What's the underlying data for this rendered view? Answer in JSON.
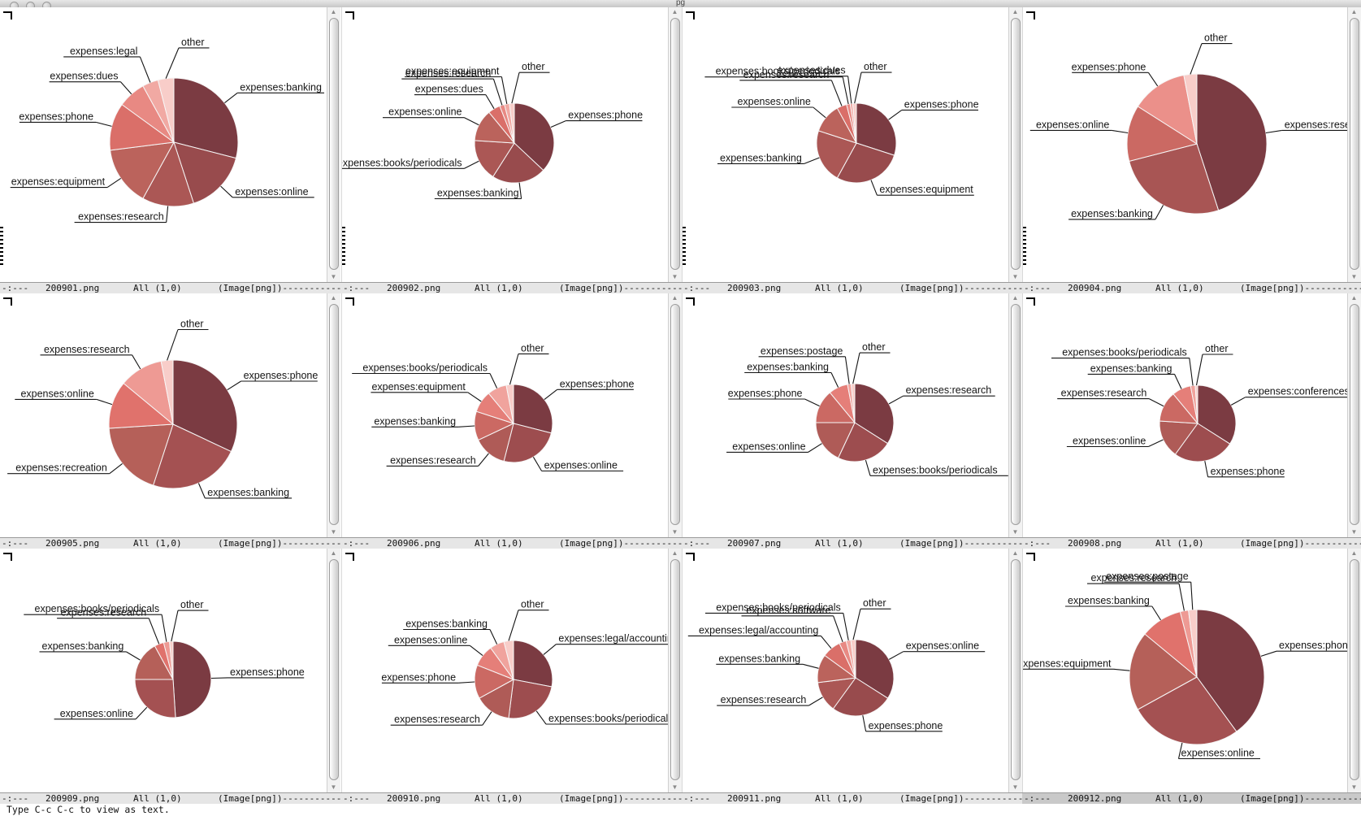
{
  "window": {
    "titlebar": {
      "title": "pg",
      "buttons": [
        "close-button",
        "minimize-button",
        "zoom-button"
      ]
    },
    "minibuffer_text": "Type C-c C-c to view as text."
  },
  "modeline": {
    "prefix": "-:---",
    "position": "All (1,0)",
    "mode": "(Image[png])",
    "dash_fill": "--------------------------------------------------------------------------------"
  },
  "active_pane": "200912.png",
  "chart_style": {
    "palette": [
      "#7b3b42",
      "#a45152",
      "#b56059",
      "#e0726c",
      "#ee9a94",
      "#f8cdc9"
    ],
    "slice_stroke": "#f7f7f7",
    "label_color": "#141414"
  },
  "panes": [
    {
      "file": "200901.png",
      "chart_data": {
        "type": "pie",
        "slices": [
          {
            "label": "expenses:banking",
            "pct": 29,
            "side": "right"
          },
          {
            "label": "expenses:online",
            "pct": 16,
            "side": "right"
          },
          {
            "label": "expenses:research",
            "pct": 13,
            "side": "left"
          },
          {
            "label": "expenses:equipment",
            "pct": 15,
            "side": "left"
          },
          {
            "label": "expenses:phone",
            "pct": 12,
            "side": "left"
          },
          {
            "label": "expenses:dues",
            "pct": 7,
            "side": "left"
          },
          {
            "label": "expenses:legal",
            "pct": 4,
            "side": "left"
          },
          {
            "label": "other",
            "pct": 4,
            "side": "right"
          }
        ]
      }
    },
    {
      "file": "200902.png",
      "chart_data": {
        "type": "pie",
        "slices": [
          {
            "label": "expenses:phone",
            "pct": 37,
            "side": "right"
          },
          {
            "label": "expenses:banking",
            "pct": 22,
            "side": "left"
          },
          {
            "label": "expenses:books/periodicals",
            "pct": 17,
            "side": "left"
          },
          {
            "label": "expenses:online",
            "pct": 13,
            "side": "left"
          },
          {
            "label": "expenses:dues",
            "pct": 5,
            "side": "left"
          },
          {
            "label": "expenses:research",
            "pct": 2,
            "side": "left"
          },
          {
            "label": "expenses:equipment",
            "pct": 2,
            "side": "left"
          },
          {
            "label": "other",
            "pct": 2,
            "side": "right"
          }
        ]
      }
    },
    {
      "file": "200903.png",
      "chart_data": {
        "type": "pie",
        "slices": [
          {
            "label": "expenses:phone",
            "pct": 30,
            "side": "right"
          },
          {
            "label": "expenses:equipment",
            "pct": 28,
            "side": "right"
          },
          {
            "label": "expenses:banking",
            "pct": 22,
            "side": "left"
          },
          {
            "label": "expenses:online",
            "pct": 12,
            "side": "left"
          },
          {
            "label": "expenses:research",
            "pct": 4,
            "side": "left"
          },
          {
            "label": "expenses:books/periodicals",
            "pct": 1.5,
            "side": "left"
          },
          {
            "label": "expenses:dues",
            "pct": 1,
            "side": "left"
          },
          {
            "label": "other",
            "pct": 1.5,
            "side": "right"
          }
        ]
      }
    },
    {
      "file": "200904.png",
      "chart_data": {
        "type": "pie",
        "slices": [
          {
            "label": "expenses:research",
            "pct": 45,
            "side": "right"
          },
          {
            "label": "expenses:banking",
            "pct": 26,
            "side": "left"
          },
          {
            "label": "expenses:online",
            "pct": 13,
            "side": "left"
          },
          {
            "label": "expenses:phone",
            "pct": 13,
            "side": "left"
          },
          {
            "label": "other",
            "pct": 3,
            "side": "right"
          }
        ]
      }
    },
    {
      "file": "200905.png",
      "chart_data": {
        "type": "pie",
        "slices": [
          {
            "label": "expenses:phone",
            "pct": 32,
            "side": "right"
          },
          {
            "label": "expenses:banking",
            "pct": 23,
            "side": "right"
          },
          {
            "label": "expenses:recreation",
            "pct": 19,
            "side": "left"
          },
          {
            "label": "expenses:online",
            "pct": 12,
            "side": "left"
          },
          {
            "label": "expenses:research",
            "pct": 11,
            "side": "left"
          },
          {
            "label": "other",
            "pct": 3,
            "side": "right"
          }
        ]
      }
    },
    {
      "file": "200906.png",
      "chart_data": {
        "type": "pie",
        "slices": [
          {
            "label": "expenses:phone",
            "pct": 29,
            "side": "right"
          },
          {
            "label": "expenses:online",
            "pct": 25,
            "side": "right"
          },
          {
            "label": "expenses:research",
            "pct": 14,
            "side": "left"
          },
          {
            "label": "expenses:banking",
            "pct": 12,
            "side": "left"
          },
          {
            "label": "expenses:equipment",
            "pct": 9,
            "side": "left"
          },
          {
            "label": "expenses:books/periodicals",
            "pct": 8,
            "side": "left"
          },
          {
            "label": "other",
            "pct": 3,
            "side": "right"
          }
        ]
      }
    },
    {
      "file": "200907.png",
      "chart_data": {
        "type": "pie",
        "slices": [
          {
            "label": "expenses:research",
            "pct": 34,
            "side": "right"
          },
          {
            "label": "expenses:books/periodicals",
            "pct": 23,
            "side": "right"
          },
          {
            "label": "expenses:online",
            "pct": 18,
            "side": "left"
          },
          {
            "label": "expenses:phone",
            "pct": 14,
            "side": "left"
          },
          {
            "label": "expenses:banking",
            "pct": 8,
            "side": "left"
          },
          {
            "label": "expenses:postage",
            "pct": 1.5,
            "side": "left"
          },
          {
            "label": "other",
            "pct": 1.5,
            "side": "right"
          }
        ]
      }
    },
    {
      "file": "200908.png",
      "chart_data": {
        "type": "pie",
        "slices": [
          {
            "label": "expenses:conferences",
            "pct": 34,
            "side": "right"
          },
          {
            "label": "expenses:phone",
            "pct": 26,
            "side": "right"
          },
          {
            "label": "expenses:online",
            "pct": 16,
            "side": "left"
          },
          {
            "label": "expenses:research",
            "pct": 13,
            "side": "left"
          },
          {
            "label": "expenses:banking",
            "pct": 8,
            "side": "left"
          },
          {
            "label": "expenses:books/periodicals",
            "pct": 2,
            "side": "left"
          },
          {
            "label": "other",
            "pct": 1,
            "side": "right"
          }
        ]
      }
    },
    {
      "file": "200909.png",
      "chart_data": {
        "type": "pie",
        "slices": [
          {
            "label": "expenses:phone",
            "pct": 49,
            "side": "right"
          },
          {
            "label": "expenses:online",
            "pct": 26,
            "side": "left"
          },
          {
            "label": "expenses:banking",
            "pct": 17,
            "side": "left"
          },
          {
            "label": "expenses:research",
            "pct": 4,
            "side": "left"
          },
          {
            "label": "expenses:books/periodicals",
            "pct": 2.5,
            "side": "left"
          },
          {
            "label": "other",
            "pct": 1.5,
            "side": "right"
          }
        ]
      }
    },
    {
      "file": "200910.png",
      "chart_data": {
        "type": "pie",
        "slices": [
          {
            "label": "expenses:legal/accounting",
            "pct": 28,
            "side": "right"
          },
          {
            "label": "expenses:books/periodicals",
            "pct": 24,
            "side": "right"
          },
          {
            "label": "expenses:research",
            "pct": 15,
            "side": "left"
          },
          {
            "label": "expenses:phone",
            "pct": 14,
            "side": "left"
          },
          {
            "label": "expenses:online",
            "pct": 9,
            "side": "left"
          },
          {
            "label": "expenses:banking",
            "pct": 6,
            "side": "left"
          },
          {
            "label": "other",
            "pct": 4,
            "side": "right"
          }
        ]
      }
    },
    {
      "file": "200911.png",
      "chart_data": {
        "type": "pie",
        "slices": [
          {
            "label": "expenses:online",
            "pct": 34,
            "side": "right"
          },
          {
            "label": "expenses:phone",
            "pct": 26,
            "side": "right"
          },
          {
            "label": "expenses:research",
            "pct": 13,
            "side": "left"
          },
          {
            "label": "expenses:banking",
            "pct": 12,
            "side": "left"
          },
          {
            "label": "expenses:legal/accounting",
            "pct": 8,
            "side": "left"
          },
          {
            "label": "expenses:software",
            "pct": 3,
            "side": "left"
          },
          {
            "label": "expenses:books/periodicals",
            "pct": 2,
            "side": "left"
          },
          {
            "label": "other",
            "pct": 2,
            "side": "right"
          }
        ]
      }
    },
    {
      "file": "200912.png",
      "chart_data": {
        "type": "pie",
        "slices": [
          {
            "label": "expenses:phone",
            "pct": 40,
            "side": "right"
          },
          {
            "label": "expenses:online",
            "pct": 27,
            "side": "right"
          },
          {
            "label": "expenses:equipment",
            "pct": 19,
            "side": "left"
          },
          {
            "label": "expenses:banking",
            "pct": 10,
            "side": "left"
          },
          {
            "label": "expenses:research",
            "pct": 2,
            "side": "left"
          },
          {
            "label": "expenses:postage",
            "pct": 2,
            "side": "left"
          }
        ]
      }
    }
  ]
}
